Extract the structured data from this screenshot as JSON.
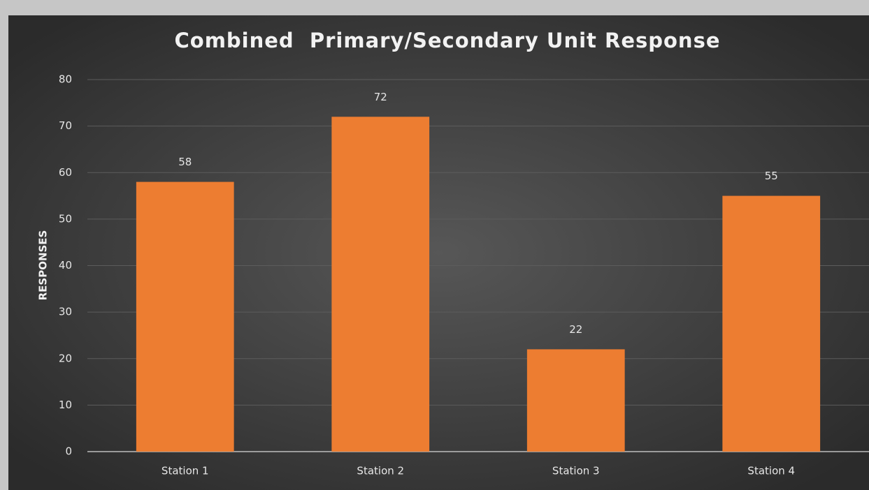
{
  "chart_data": {
    "type": "bar",
    "title": "Combined  Primary/Secondary Unit Response",
    "y_label": "RESPONSES",
    "categories": [
      "Station 1",
      "Station 2",
      "Station 3",
      "Station 4"
    ],
    "values": [
      58,
      72,
      22,
      55
    ],
    "color": "#ed7d31",
    "ylim": [
      0,
      80
    ],
    "yticks": [
      0,
      10,
      20,
      30,
      40,
      50,
      60,
      70,
      80
    ],
    "grid": true
  }
}
